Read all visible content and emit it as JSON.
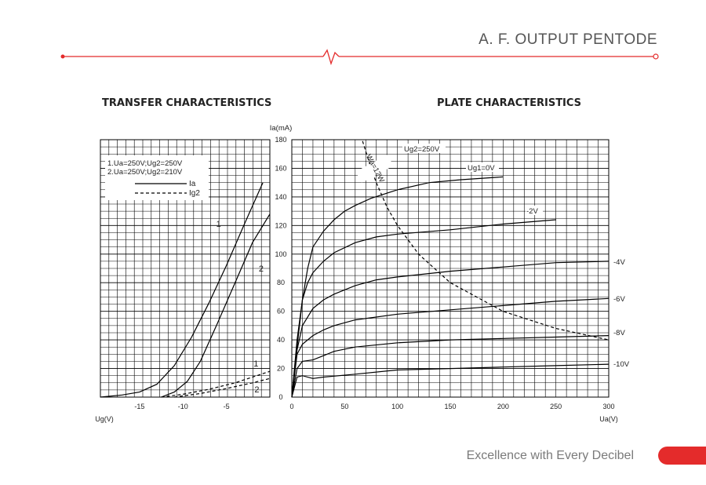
{
  "header": {
    "title": "A. F. OUTPUT PENTODE",
    "accent_color": "#e42b2b"
  },
  "footer": {
    "tagline": "Excellence with Every Decibel"
  },
  "chart_data": [
    {
      "type": "line",
      "title": "TRANSFER CHARACTERISTICS",
      "xlabel": "Ug(V)",
      "ylabel": "Ia(mA)",
      "xlim": [
        -19.5,
        0
      ],
      "ylim": [
        0,
        180
      ],
      "xticks": [
        -15,
        -10,
        -5
      ],
      "xtick_labels": [
        "-15",
        "-10",
        "-5"
      ],
      "grid": true,
      "legend": {
        "position": "top-left",
        "conditions": [
          "1.Ua=250V;Ug2=250V",
          "2.Ua=250V;Ug2=210V"
        ],
        "entries": [
          {
            "label": "Ia",
            "style": "solid"
          },
          {
            "label": "Ig2",
            "style": "dashed"
          }
        ]
      },
      "series": [
        {
          "name": "1",
          "quantity": "Ia",
          "style": "solid",
          "x": [
            -19.5,
            -17.0,
            -15.0,
            -13.0,
            -11.0,
            -9.0,
            -7.0,
            -5.0,
            -3.0,
            -0.8
          ],
          "y": [
            0,
            1.5,
            3.5,
            9,
            22,
            42,
            66,
            92,
            120,
            150
          ]
        },
        {
          "name": "2",
          "quantity": "Ia",
          "style": "solid",
          "x": [
            -12.5,
            -11.0,
            -9.5,
            -8.0,
            -6.0,
            -4.0,
            -2.0,
            0
          ],
          "y": [
            0,
            3.5,
            11,
            25,
            52,
            80,
            108,
            128
          ]
        },
        {
          "name": "1",
          "quantity": "Ig2",
          "style": "dashed",
          "x": [
            -12.5,
            -10.0,
            -7.0,
            -4.0,
            -2.0,
            0
          ],
          "y": [
            0,
            2,
            5.5,
            10,
            14,
            18
          ]
        },
        {
          "name": "2",
          "quantity": "Ig2",
          "style": "dashed",
          "x": [
            -11.0,
            -8.0,
            -5.0,
            -2.0,
            0
          ],
          "y": [
            0,
            2.5,
            6,
            10,
            13
          ]
        }
      ]
    },
    {
      "type": "line",
      "title": "PLATE CHARACTERISTICS",
      "xlabel": "Ua(V)",
      "ylabel": "Ia(mA)",
      "xlim": [
        0,
        300
      ],
      "ylim": [
        0,
        180
      ],
      "xticks": [
        0,
        50,
        100,
        150,
        200,
        250,
        300
      ],
      "yticks": [
        0,
        20,
        40,
        60,
        80,
        100,
        120,
        140,
        160,
        180
      ],
      "grid": true,
      "annotation": "Ug2=250V",
      "series": [
        {
          "name": "Ug1=0V",
          "style": "solid",
          "x": [
            0,
            5,
            10,
            15,
            20,
            30,
            40,
            50,
            60,
            75,
            100,
            130,
            160,
            200
          ],
          "y": [
            0,
            35,
            68,
            90,
            105,
            116,
            124,
            130,
            134,
            139,
            145,
            150,
            152,
            154
          ]
        },
        {
          "name": "-2V",
          "style": "solid",
          "x": [
            0,
            5,
            10,
            15,
            20,
            30,
            40,
            60,
            80,
            100,
            150,
            200,
            250
          ],
          "y": [
            0,
            40,
            68,
            80,
            87,
            95,
            101,
            108,
            112,
            114,
            117,
            121,
            124
          ]
        },
        {
          "name": "-4V",
          "style": "solid",
          "x": [
            0,
            5,
            10,
            20,
            30,
            40,
            60,
            80,
            100,
            150,
            200,
            250,
            300
          ],
          "y": [
            0,
            33,
            50,
            62,
            68,
            72,
            78,
            82,
            84,
            88,
            91,
            94,
            95
          ]
        },
        {
          "name": "-6V",
          "style": "solid",
          "x": [
            0,
            5,
            10,
            20,
            30,
            40,
            60,
            100,
            150,
            200,
            250,
            300
          ],
          "y": [
            0,
            30,
            37,
            43,
            47,
            50,
            54,
            58,
            61,
            64,
            67,
            69
          ]
        },
        {
          "name": "-8V",
          "style": "solid",
          "x": [
            0,
            5,
            10,
            20,
            30,
            40,
            60,
            100,
            150,
            200,
            250,
            300
          ],
          "y": [
            0,
            20,
            25,
            26,
            29,
            32,
            35,
            38,
            40,
            41,
            42,
            43
          ]
        },
        {
          "name": "-10V",
          "style": "solid",
          "x": [
            0,
            5,
            10,
            20,
            30,
            60,
            100,
            150,
            200,
            250,
            300
          ],
          "y": [
            0,
            14,
            15,
            13,
            14,
            16,
            19,
            20,
            21,
            22,
            23
          ]
        },
        {
          "name": "Wa=12W",
          "style": "dashed",
          "x": [
            67,
            75,
            80,
            90,
            100,
            120,
            150,
            200,
            250,
            300
          ],
          "y": [
            179,
            160,
            150,
            133,
            120,
            100,
            80,
            60,
            48,
            40
          ]
        }
      ]
    }
  ]
}
